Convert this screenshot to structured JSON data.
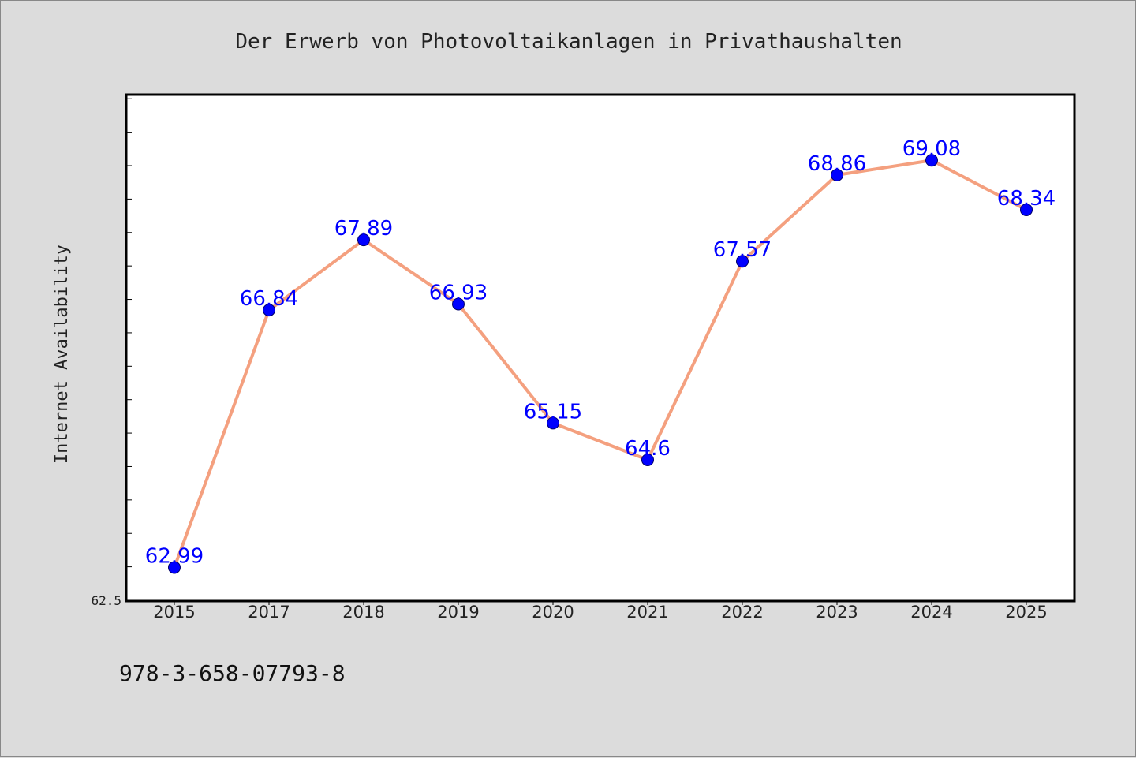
{
  "chart_data": {
    "type": "line",
    "title": "Der Erwerb von Photovoltaikanlagen in Privathaushalten",
    "xlabel": "",
    "ylabel": "Internet Availability",
    "categories": [
      "2015",
      "2017",
      "2018",
      "2019",
      "2020",
      "2021",
      "2022",
      "2023",
      "2024",
      "2025"
    ],
    "series": [
      {
        "values": [
          62.99,
          66.84,
          67.89,
          66.93,
          65.15,
          64.6,
          67.57,
          68.86,
          69.08,
          68.34
        ]
      }
    ],
    "data_labels": [
      "62.99",
      "66.84",
      "67.89",
      "66.93",
      "65.15",
      "64.6",
      "67.57",
      "68.86",
      "69.08",
      "68.34"
    ],
    "ylim": [
      62.5,
      70.05
    ],
    "ytick_label": "62.5",
    "grid": false,
    "line_color": "#f4a07f",
    "marker_color": "#0000ff",
    "label_color": "#0000ff",
    "background_color": "#dcdcdc"
  },
  "footnote": "978-3-658-07793-8"
}
